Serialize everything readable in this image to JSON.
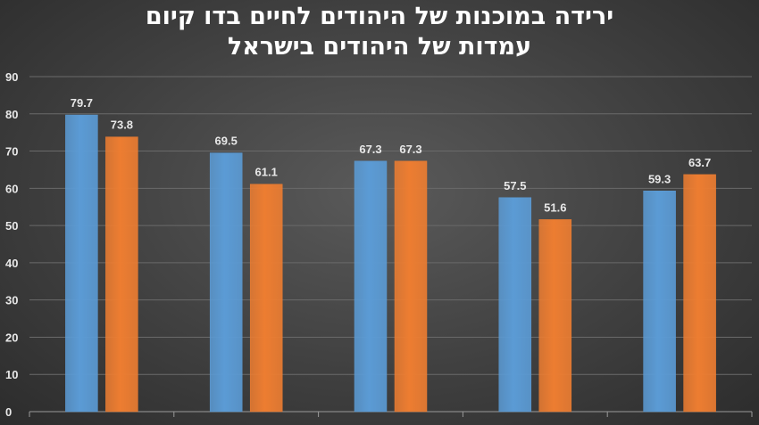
{
  "chart_data": {
    "type": "bar",
    "title_lines": [
      "ירידה במוכנות של היהודים לחיים בדו קיום",
      "עמדות של היהודים בישראל"
    ],
    "categories": [
      "",
      "",
      "",
      "",
      ""
    ],
    "series": [
      {
        "values": [
          79.7,
          69.5,
          67.3,
          57.5,
          59.3
        ]
      },
      {
        "values": [
          73.8,
          61.1,
          67.3,
          51.6,
          63.7
        ]
      }
    ],
    "ylim": [
      0,
      90
    ],
    "yticks": [
      0,
      10,
      20,
      30,
      40,
      50,
      60,
      70,
      80,
      90
    ],
    "grid": true,
    "legend": "none"
  },
  "colors": {
    "series_1": "#5b9bd5",
    "series_2": "#ed7d31"
  }
}
